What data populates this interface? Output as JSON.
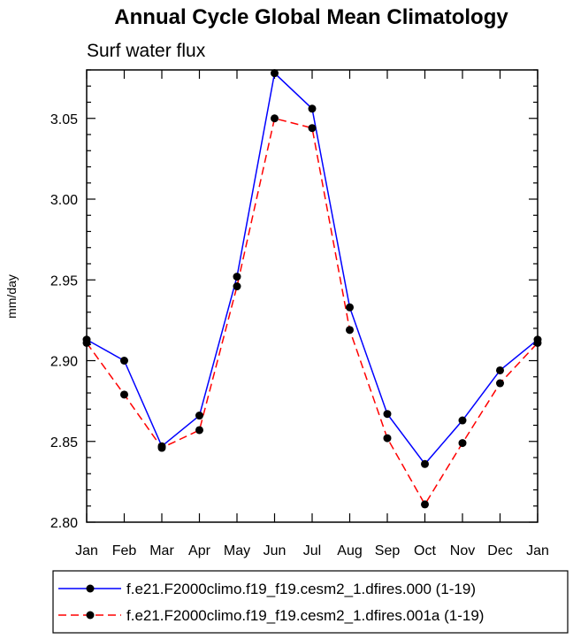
{
  "chart_data": {
    "type": "line",
    "title": "Annual Cycle Global Mean Climatology",
    "subtitle": "Surf water flux",
    "ylabel": "mm/day",
    "xlabel": "",
    "categories": [
      "Jan",
      "Feb",
      "Mar",
      "Apr",
      "May",
      "Jun",
      "Jul",
      "Aug",
      "Sep",
      "Oct",
      "Nov",
      "Dec",
      "Jan"
    ],
    "ylim": [
      2.8,
      3.08
    ],
    "yticks": [
      "2.80",
      "2.85",
      "2.90",
      "2.95",
      "3.00",
      "3.05"
    ],
    "grid": false,
    "legend_position": "bottom",
    "series": [
      {
        "name": "f.e21.F2000climo.f19_f19.cesm2_1.dfires.000 (1-19)",
        "color": "#0000ff",
        "line_style": "solid",
        "values": [
          2.913,
          2.9,
          2.847,
          2.866,
          2.952,
          3.078,
          3.056,
          2.933,
          2.867,
          2.836,
          2.863,
          2.894,
          2.913
        ]
      },
      {
        "name": "f.e21.F2000climo.f19_f19.cesm2_1.dfires.001a (1-19)",
        "color": "#ff0000",
        "line_style": "dashed",
        "values": [
          2.911,
          2.879,
          2.846,
          2.857,
          2.946,
          3.05,
          3.044,
          2.919,
          2.852,
          2.811,
          2.849,
          2.886,
          2.911
        ]
      }
    ]
  }
}
